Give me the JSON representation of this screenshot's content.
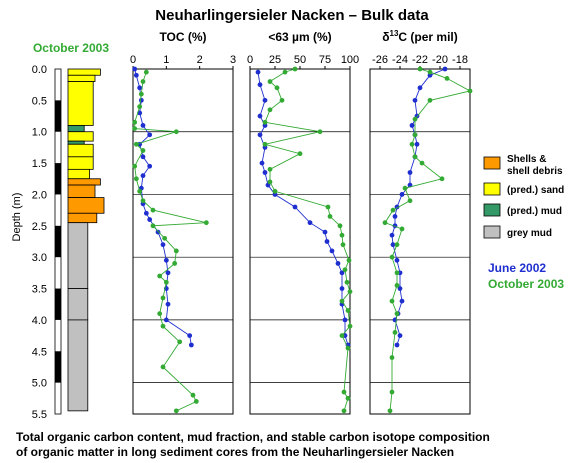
{
  "chart_data": {
    "type": "line",
    "title": "Neuharlingersieler Nacken – Bulk data",
    "core_label": "October 2003",
    "ylabel": "Depth (m)",
    "ylim": [
      0,
      5.5
    ],
    "yticks": [
      "0.0",
      "0.5",
      "1.0",
      "1.5",
      "2.0",
      "2.5",
      "3.0",
      "3.5",
      "4.0",
      "4.5",
      "5.0",
      "5.5"
    ],
    "caption": [
      "Total organic carbon content, mud fraction, and stable carbon isotope composition",
      "of organic matter in long sediment cores from the Neuharlingersieler Nacken"
    ],
    "series_legend": [
      {
        "name": "June 2002",
        "color": "#1f2fcf"
      },
      {
        "name": "October 2003",
        "color": "#33aa33"
      }
    ],
    "lithology_legend": [
      {
        "lines": [
          "Shells &",
          "shell debris"
        ],
        "color": "#ff9900"
      },
      {
        "lines": [
          "(pred.) sand"
        ],
        "color": "#ffff00"
      },
      {
        "lines": [
          "(pred.) mud"
        ],
        "color": "#339966"
      },
      {
        "lines": [
          "grey mud"
        ],
        "color": "#c0c0c0"
      }
    ],
    "core_log": [
      {
        "top": 0.0,
        "bottom": 0.1,
        "type": "sand",
        "width": 0.9
      },
      {
        "top": 0.1,
        "bottom": 0.2,
        "type": "sand",
        "width": 0.75
      },
      {
        "top": 0.2,
        "bottom": 0.9,
        "type": "sand",
        "width": 0.7
      },
      {
        "top": 0.9,
        "bottom": 1.0,
        "type": "mud",
        "width": 0.45
      },
      {
        "top": 1.0,
        "bottom": 1.15,
        "type": "sand",
        "width": 0.7
      },
      {
        "top": 1.15,
        "bottom": 1.2,
        "type": "mud",
        "width": 0.45
      },
      {
        "top": 1.2,
        "bottom": 1.4,
        "type": "sand",
        "width": 0.7
      },
      {
        "top": 1.4,
        "bottom": 1.6,
        "type": "sand",
        "width": 0.7
      },
      {
        "top": 1.6,
        "bottom": 1.75,
        "type": "sand",
        "width": 0.6
      },
      {
        "top": 1.75,
        "bottom": 1.85,
        "type": "shells",
        "width": 0.9
      },
      {
        "top": 1.85,
        "bottom": 2.05,
        "type": "shells",
        "width": 0.75
      },
      {
        "top": 2.05,
        "bottom": 2.3,
        "type": "shells",
        "width": 1.0
      },
      {
        "top": 2.3,
        "bottom": 2.45,
        "type": "shells",
        "width": 0.8
      },
      {
        "top": 2.45,
        "bottom": 3.5,
        "type": "greymud",
        "width": 0.55
      },
      {
        "top": 3.5,
        "bottom": 4.0,
        "type": "greymud",
        "width": 0.55
      },
      {
        "top": 4.0,
        "bottom": 5.45,
        "type": "greymud",
        "width": 0.55
      }
    ],
    "panels": [
      {
        "title": "TOC (%)",
        "xlim": [
          0,
          3
        ],
        "xticks": [
          "0",
          "1",
          "2",
          "3"
        ],
        "series": [
          {
            "name": "June 2002",
            "points": [
              [
                0.05,
                0.0
              ],
              [
                0.1,
                0.1
              ],
              [
                0.2,
                0.3
              ],
              [
                0.25,
                0.5
              ],
              [
                0.2,
                0.7
              ],
              [
                0.3,
                0.9
              ],
              [
                0.5,
                1.05
              ],
              [
                0.2,
                1.2
              ],
              [
                0.3,
                1.4
              ],
              [
                0.5,
                1.55
              ],
              [
                0.3,
                1.7
              ],
              [
                0.25,
                1.9
              ],
              [
                0.3,
                2.15
              ],
              [
                0.4,
                2.3
              ],
              [
                0.5,
                2.4
              ],
              [
                0.75,
                2.6
              ],
              [
                0.9,
                2.8
              ],
              [
                1.0,
                3.05
              ],
              [
                1.05,
                3.25
              ],
              [
                1.0,
                3.5
              ],
              [
                1.05,
                3.75
              ],
              [
                1.0,
                4.0
              ],
              [
                1.7,
                4.25
              ],
              [
                1.75,
                4.4
              ]
            ]
          },
          {
            "name": "October 2003",
            "points": [
              [
                0.4,
                0.05
              ],
              [
                0.3,
                0.2
              ],
              [
                0.25,
                0.4
              ],
              [
                0.2,
                0.6
              ],
              [
                0.05,
                0.85
              ],
              [
                0.05,
                0.95
              ],
              [
                1.3,
                1.0
              ],
              [
                0.1,
                1.2
              ],
              [
                0.3,
                1.3
              ],
              [
                0.05,
                1.55
              ],
              [
                0.1,
                1.75
              ],
              [
                0.2,
                1.95
              ],
              [
                0.3,
                2.1
              ],
              [
                0.6,
                2.25
              ],
              [
                2.2,
                2.45
              ],
              [
                0.6,
                2.5
              ],
              [
                0.95,
                2.7
              ],
              [
                1.3,
                2.9
              ],
              [
                1.25,
                3.1
              ],
              [
                0.8,
                3.3
              ],
              [
                1.0,
                3.4
              ],
              [
                0.9,
                3.65
              ],
              [
                0.8,
                3.9
              ],
              [
                0.9,
                4.1
              ],
              [
                1.4,
                4.35
              ],
              [
                0.9,
                4.75
              ],
              [
                1.8,
                5.2
              ],
              [
                1.9,
                5.3
              ],
              [
                1.3,
                5.45
              ]
            ]
          }
        ]
      },
      {
        "title": "<63 µm (%)",
        "xlim": [
          0,
          100
        ],
        "xticks": [
          "0",
          "25",
          "50",
          "75",
          "100"
        ],
        "series": [
          {
            "name": "June 2002",
            "points": [
              [
                8,
                0.05
              ],
              [
                10,
                0.25
              ],
              [
                15,
                0.5
              ],
              [
                10,
                0.75
              ],
              [
                15,
                0.9
              ],
              [
                10,
                1.05
              ],
              [
                15,
                1.25
              ],
              [
                12,
                1.5
              ],
              [
                15,
                1.65
              ],
              [
                18,
                1.85
              ],
              [
                25,
                2.0
              ],
              [
                45,
                2.2
              ],
              [
                60,
                2.45
              ],
              [
                75,
                2.6
              ],
              [
                77,
                2.75
              ],
              [
                82,
                2.9
              ],
              [
                88,
                3.1
              ],
              [
                92,
                3.25
              ],
              [
                92,
                3.5
              ],
              [
                92,
                3.75
              ],
              [
                95,
                4.0
              ],
              [
                95,
                4.25
              ],
              [
                98,
                4.4
              ]
            ]
          },
          {
            "name": "October 2003",
            "points": [
              [
                45,
                0.0
              ],
              [
                35,
                0.05
              ],
              [
                20,
                0.2
              ],
              [
                27,
                0.3
              ],
              [
                32,
                0.5
              ],
              [
                20,
                0.65
              ],
              [
                15,
                0.85
              ],
              [
                70,
                1.0
              ],
              [
                15,
                1.2
              ],
              [
                50,
                1.35
              ],
              [
                20,
                1.6
              ],
              [
                20,
                1.8
              ],
              [
                25,
                1.95
              ],
              [
                78,
                2.2
              ],
              [
                80,
                2.35
              ],
              [
                90,
                2.5
              ],
              [
                92,
                2.65
              ],
              [
                93,
                2.8
              ],
              [
                99,
                3.05
              ],
              [
                95,
                3.2
              ],
              [
                97,
                3.4
              ],
              [
                100,
                3.55
              ],
              [
                92,
                3.7
              ],
              [
                98,
                3.85
              ],
              [
                100,
                4.1
              ],
              [
                92,
                4.25
              ],
              [
                98,
                4.45
              ],
              [
                94,
                5.15
              ],
              [
                98,
                5.25
              ],
              [
                94,
                5.45
              ]
            ]
          }
        ]
      },
      {
        "title": "δ13C (per mil)",
        "title_parts": {
          "delta": "δ",
          "sup": "13",
          "rest": "C (per mil)"
        },
        "xlim": [
          -27,
          -17
        ],
        "xticks": [
          "-26",
          "-24",
          "-22",
          "-20",
          "-18"
        ],
        "series": [
          {
            "name": "June 2002",
            "points": [
              [
                -19.5,
                0.0
              ],
              [
                -21,
                0.1
              ],
              [
                -22,
                0.3
              ],
              [
                -22.5,
                0.5
              ],
              [
                -22.3,
                0.75
              ],
              [
                -22.8,
                0.9
              ],
              [
                -22.5,
                1.05
              ],
              [
                -22.3,
                1.2
              ],
              [
                -22.5,
                1.4
              ],
              [
                -23,
                1.65
              ],
              [
                -23,
                1.85
              ],
              [
                -23.8,
                2.0
              ],
              [
                -24.3,
                2.2
              ],
              [
                -24.5,
                2.35
              ],
              [
                -24.5,
                2.5
              ],
              [
                -24.8,
                2.65
              ],
              [
                -24.7,
                2.8
              ],
              [
                -24.3,
                3.05
              ],
              [
                -24.0,
                3.25
              ],
              [
                -24.0,
                3.5
              ],
              [
                -23.8,
                3.7
              ],
              [
                -24.2,
                3.9
              ],
              [
                -24.5,
                4.0
              ],
              [
                -24.0,
                4.25
              ],
              [
                -24.3,
                4.4
              ]
            ]
          },
          {
            "name": "October 2003",
            "points": [
              [
                -22,
                0.0
              ],
              [
                -21,
                0.05
              ],
              [
                -19.3,
                0.15
              ],
              [
                -17,
                0.35
              ],
              [
                -21,
                0.5
              ],
              [
                -22.5,
                0.8
              ],
              [
                -22.5,
                1.05
              ],
              [
                -22.8,
                1.2
              ],
              [
                -22.5,
                1.4
              ],
              [
                -21.8,
                1.5
              ],
              [
                -19.8,
                1.75
              ],
              [
                -23.5,
                1.9
              ],
              [
                -23.0,
                2.1
              ],
              [
                -24.7,
                2.25
              ],
              [
                -25.5,
                2.45
              ],
              [
                -23.8,
                2.55
              ],
              [
                -24.3,
                2.8
              ],
              [
                -24.8,
                3.0
              ],
              [
                -24.3,
                3.25
              ],
              [
                -24.3,
                3.45
              ],
              [
                -24.8,
                3.7
              ],
              [
                -24.3,
                3.9
              ],
              [
                -24.5,
                4.2
              ],
              [
                -24.8,
                4.6
              ],
              [
                -24.8,
                5.15
              ],
              [
                -25.0,
                5.45
              ]
            ]
          }
        ]
      }
    ]
  }
}
